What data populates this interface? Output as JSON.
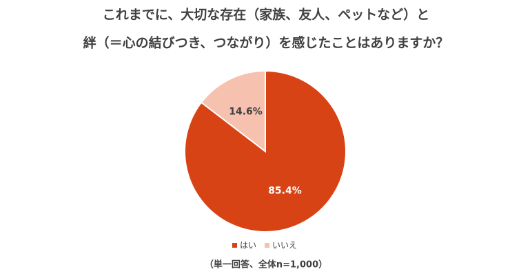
{
  "chart_data": {
    "type": "pie",
    "title": [
      "これまでに、大切な存在（家族、友人、ペットなど）と",
      "絆（＝心の結びつき、つながり）を感じたことはありますか？"
    ],
    "categories": [
      "はい",
      "いいえ"
    ],
    "values": [
      85.4,
      14.6
    ],
    "value_labels": [
      "85.4%",
      "14.6%"
    ],
    "colors": [
      "#d84315",
      "#f6c1ae"
    ],
    "legend": "bottom",
    "note": "（単一回答、全体n=1,000）"
  }
}
